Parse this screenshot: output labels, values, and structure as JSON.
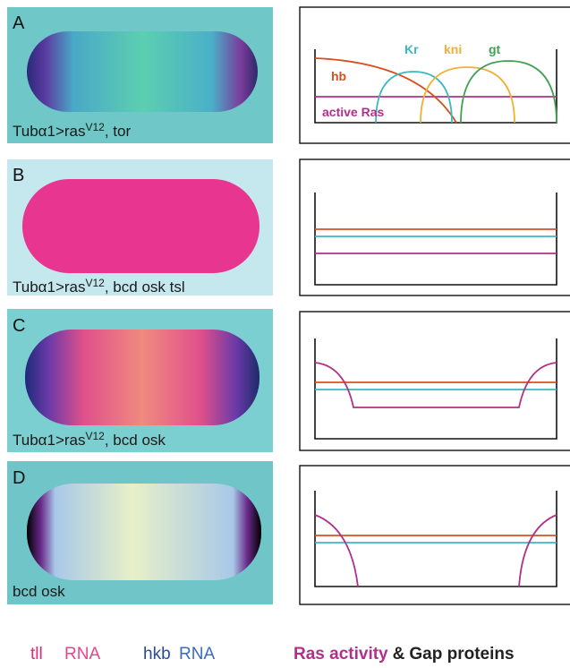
{
  "panels": [
    {
      "letter": "A",
      "caption": {
        "text": "Tubα1>ras",
        "superscript": "V12",
        "suffix": ", tor"
      },
      "diagram_labels": [
        "hb",
        "Kr",
        "kni",
        "gt",
        "active Ras"
      ]
    },
    {
      "letter": "B",
      "caption": {
        "text": "Tubα1>ras",
        "superscript": "V12",
        "suffix": ", bcd osk tsl"
      }
    },
    {
      "letter": "C",
      "caption": {
        "text": "Tubα1>ras",
        "superscript": "V12",
        "suffix": ", bcd osk"
      }
    },
    {
      "letter": "D",
      "caption": {
        "text": "bcd osk"
      }
    }
  ],
  "legend": {
    "tll": "tll",
    "tll_rna": "RNA",
    "hkb": "hkb",
    "hkb_rna": "RNA",
    "ras": "Ras activity",
    "and": "&",
    "gap": "Gap proteins"
  }
}
